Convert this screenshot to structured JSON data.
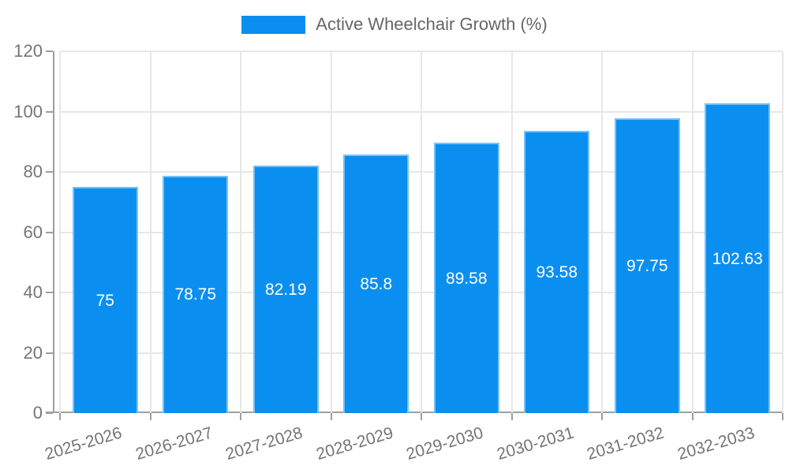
{
  "chart_data": {
    "type": "bar",
    "title": "",
    "legend": {
      "position": "top",
      "label": "Active Wheelchair Growth (%)"
    },
    "categories": [
      "2025-2026",
      "2026-2027",
      "2027-2028",
      "2028-2029",
      "2029-2030",
      "2030-2031",
      "2031-2032",
      "2032-2033"
    ],
    "values": [
      75,
      78.75,
      82.19,
      85.8,
      89.58,
      93.58,
      97.75,
      102.63
    ],
    "value_labels": [
      "75",
      "78.75",
      "82.19",
      "85.8",
      "89.58",
      "93.58",
      "97.75",
      "102.63"
    ],
    "xlabel": "",
    "ylabel": "",
    "ylim": [
      0,
      120
    ],
    "ytick_step": 20,
    "ytick_labels": [
      "0",
      "20",
      "40",
      "60",
      "80",
      "100",
      "120"
    ],
    "grid": true,
    "x_label_rotation_deg": -16.5,
    "colors": {
      "bar": "#0a8ff0",
      "value_label": "#ffffff",
      "axis_line": "#9e9e9e",
      "grid_line": "#e7e7e7",
      "tick_label": "#757575",
      "legend_text": "#666666",
      "background": "#ffffff"
    }
  }
}
